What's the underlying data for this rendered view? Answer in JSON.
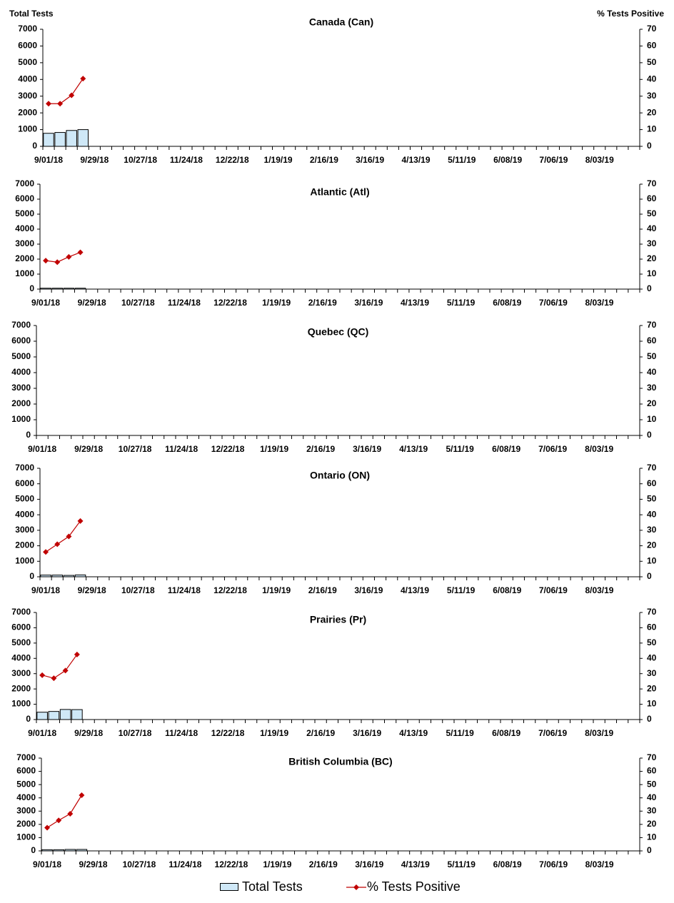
{
  "left_axis_title": "Total Tests",
  "right_axis_title": "% Tests Positive",
  "colors": {
    "bar_fill": "#cfe8f7",
    "bar_stroke": "#000000",
    "line": "#c00000",
    "marker": "#c00000"
  },
  "legend": {
    "bars": "Total Tests",
    "line": "% Tests Positive"
  },
  "chart_data": [
    {
      "type": "bar+line",
      "title": "Canada (Can)",
      "x_tick_labels": [
        "9/01/18",
        "9/29/18",
        "10/27/18",
        "11/24/18",
        "12/22/18",
        "1/19/19",
        "2/16/19",
        "3/16/19",
        "4/13/19",
        "5/11/19",
        "6/08/19",
        "7/06/19",
        "8/03/19"
      ],
      "y_left": {
        "range": [
          0,
          7000
        ],
        "ticks": [
          "0",
          "1000",
          "2000",
          "3000",
          "4000",
          "5000",
          "6000",
          "7000"
        ]
      },
      "y_right": {
        "range": [
          0,
          70
        ],
        "ticks": [
          "0",
          "10",
          "20",
          "30",
          "40",
          "50",
          "60",
          "70"
        ]
      },
      "series": [
        {
          "name": "Total Tests",
          "kind": "bar",
          "axis": "left",
          "values": [
            780,
            830,
            950,
            1000
          ]
        },
        {
          "name": "% Tests Positive",
          "kind": "line",
          "axis": "right",
          "values": [
            25.5,
            25.5,
            30.5,
            40.5
          ]
        }
      ]
    },
    {
      "type": "bar+line",
      "title": "Atlantic (Atl)",
      "x_tick_labels": [
        "9/01/18",
        "9/29/18",
        "10/27/18",
        "11/24/18",
        "12/22/18",
        "1/19/19",
        "2/16/19",
        "3/16/19",
        "4/13/19",
        "5/11/19",
        "6/08/19",
        "7/06/19",
        "8/03/19"
      ],
      "y_left": {
        "range": [
          0,
          7000
        ],
        "ticks": [
          "0",
          "1000",
          "2000",
          "3000",
          "4000",
          "5000",
          "6000",
          "7000"
        ]
      },
      "y_right": {
        "range": [
          0,
          70
        ],
        "ticks": [
          "0",
          "10",
          "20",
          "30",
          "40",
          "50",
          "60",
          "70"
        ]
      },
      "series": [
        {
          "name": "Total Tests",
          "kind": "bar",
          "axis": "left",
          "values": [
            60,
            60,
            60,
            60
          ]
        },
        {
          "name": "% Tests Positive",
          "kind": "line",
          "axis": "right",
          "values": [
            19,
            18,
            21.5,
            24.5
          ]
        }
      ]
    },
    {
      "type": "bar+line",
      "title": "Quebec (QC)",
      "x_tick_labels": [
        "9/01/18",
        "9/29/18",
        "10/27/18",
        "11/24/18",
        "12/22/18",
        "1/19/19",
        "2/16/19",
        "3/16/19",
        "4/13/19",
        "5/11/19",
        "6/08/19",
        "7/06/19",
        "8/03/19"
      ],
      "y_left": {
        "range": [
          0,
          7000
        ],
        "ticks": [
          "0",
          "1000",
          "2000",
          "3000",
          "4000",
          "5000",
          "6000",
          "7000"
        ]
      },
      "y_right": {
        "range": [
          0,
          70
        ],
        "ticks": [
          "0",
          "10",
          "20",
          "30",
          "40",
          "50",
          "60",
          "70"
        ]
      },
      "series": [
        {
          "name": "Total Tests",
          "kind": "bar",
          "axis": "left",
          "values": []
        },
        {
          "name": "% Tests Positive",
          "kind": "line",
          "axis": "right",
          "values": []
        }
      ]
    },
    {
      "type": "bar+line",
      "title": "Ontario (ON)",
      "x_tick_labels": [
        "9/01/18",
        "9/29/18",
        "10/27/18",
        "11/24/18",
        "12/22/18",
        "1/19/19",
        "2/16/19",
        "3/16/19",
        "4/13/19",
        "5/11/19",
        "6/08/19",
        "7/06/19",
        "8/03/19"
      ],
      "y_left": {
        "range": [
          0,
          7000
        ],
        "ticks": [
          "0",
          "1000",
          "2000",
          "3000",
          "4000",
          "5000",
          "6000",
          "7000"
        ]
      },
      "y_right": {
        "range": [
          0,
          70
        ],
        "ticks": [
          "0",
          "10",
          "20",
          "30",
          "40",
          "50",
          "60",
          "70"
        ]
      },
      "series": [
        {
          "name": "Total Tests",
          "kind": "bar",
          "axis": "left",
          "values": [
            110,
            110,
            90,
            120
          ]
        },
        {
          "name": "% Tests Positive",
          "kind": "line",
          "axis": "right",
          "values": [
            16,
            21,
            26,
            36
          ]
        }
      ]
    },
    {
      "type": "bar+line",
      "title": "Prairies (Pr)",
      "x_tick_labels": [
        "9/01/18",
        "9/29/18",
        "10/27/18",
        "11/24/18",
        "12/22/18",
        "1/19/19",
        "2/16/19",
        "3/16/19",
        "4/13/19",
        "5/11/19",
        "6/08/19",
        "7/06/19",
        "8/03/19"
      ],
      "y_left": {
        "range": [
          0,
          7000
        ],
        "ticks": [
          "0",
          "1000",
          "2000",
          "3000",
          "4000",
          "5000",
          "6000",
          "7000"
        ]
      },
      "y_right": {
        "range": [
          0,
          70
        ],
        "ticks": [
          "0",
          "10",
          "20",
          "30",
          "40",
          "50",
          "60",
          "70"
        ]
      },
      "series": [
        {
          "name": "Total Tests",
          "kind": "bar",
          "axis": "left",
          "values": [
            480,
            530,
            660,
            650
          ]
        },
        {
          "name": "% Tests Positive",
          "kind": "line",
          "axis": "right",
          "values": [
            29,
            27,
            32,
            42.5
          ]
        }
      ]
    },
    {
      "type": "bar+line",
      "title": "British Columbia (BC)",
      "x_tick_labels": [
        "9/01/18",
        "9/29/18",
        "10/27/18",
        "11/24/18",
        "12/22/18",
        "1/19/19",
        "2/16/19",
        "3/16/19",
        "4/13/19",
        "5/11/19",
        "6/08/19",
        "7/06/19",
        "8/03/19"
      ],
      "y_left": {
        "range": [
          0,
          7000
        ],
        "ticks": [
          "0",
          "1000",
          "2000",
          "3000",
          "4000",
          "5000",
          "6000",
          "7000"
        ]
      },
      "y_right": {
        "range": [
          0,
          70
        ],
        "ticks": [
          "0",
          "10",
          "20",
          "30",
          "40",
          "50",
          "60",
          "70"
        ]
      },
      "series": [
        {
          "name": "Total Tests",
          "kind": "bar",
          "axis": "left",
          "values": [
            90,
            90,
            110,
            110
          ]
        },
        {
          "name": "% Tests Positive",
          "kind": "line",
          "axis": "right",
          "values": [
            17.5,
            23,
            28,
            42
          ]
        }
      ]
    }
  ]
}
